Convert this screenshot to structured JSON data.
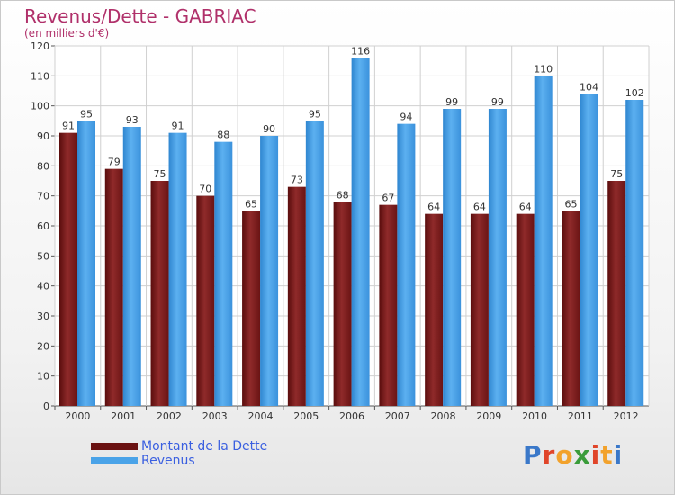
{
  "chart_data": {
    "type": "bar",
    "title": "Revenus/Dette - GABRIAC",
    "subtitle": "(en milliers d'€)",
    "categories": [
      "2000",
      "2001",
      "2002",
      "2003",
      "2004",
      "2005",
      "2006",
      "2007",
      "2008",
      "2009",
      "2010",
      "2011",
      "2012"
    ],
    "series": [
      {
        "name": "Montant de la Dette",
        "color": "#7a1a1a",
        "values": [
          91,
          79,
          75,
          70,
          65,
          73,
          68,
          67,
          64,
          64,
          64,
          65,
          75
        ]
      },
      {
        "name": "Revenus",
        "color": "#4aa3e8",
        "values": [
          95,
          93,
          91,
          88,
          90,
          95,
          116,
          94,
          99,
          99,
          110,
          104,
          102
        ]
      }
    ],
    "ylim": [
      0,
      120
    ],
    "yticks": [
      0,
      10,
      20,
      30,
      40,
      50,
      60,
      70,
      80,
      90,
      100,
      110,
      120
    ],
    "grid": true,
    "legend_position": "bottom-left"
  },
  "logo": {
    "letters": [
      "P",
      "r",
      "o",
      "x",
      "i",
      "t",
      "i"
    ],
    "colors": [
      "#3a78c9",
      "#e0452a",
      "#f2a22c",
      "#3a9c3a",
      "#e0452a",
      "#f2a22c",
      "#3a78c9"
    ]
  }
}
